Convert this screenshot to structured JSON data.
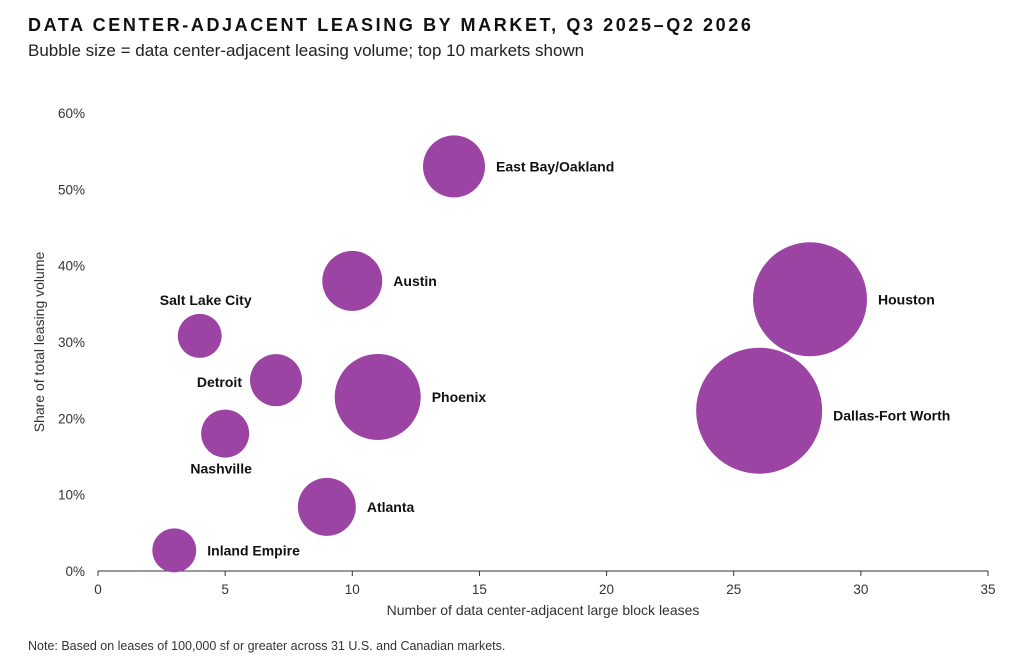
{
  "title": "DATA CENTER-ADJACENT LEASING BY MARKET, Q3 2025–Q2 2026",
  "subtitle": "Bubble size = data center-adjacent leasing volume; top 10 markets shown",
  "note": "Note: Based on leases of 100,000 sf or greater across 31 U.S. and Canadian markets.",
  "chart_data": {
    "type": "scatter",
    "bubble": true,
    "xlabel": "Number of data center-adjacent large block leases",
    "ylabel": "Share of total leasing volume",
    "xlim": [
      0,
      35
    ],
    "ylim": [
      0,
      60
    ],
    "xticks": [
      "0",
      "5",
      "10",
      "15",
      "20",
      "25",
      "30",
      "35"
    ],
    "yticks": [
      "0%",
      "10%",
      "20%",
      "30%",
      "40%",
      "50%",
      "60%"
    ],
    "grid": false,
    "color": "#9c44a3",
    "points": [
      {
        "label": "East Bay/Oakland",
        "x": 14,
        "y": 53,
        "size": 31
      },
      {
        "label": "Austin",
        "x": 10,
        "y": 38,
        "size": 30
      },
      {
        "label": "Houston",
        "x": 28,
        "y": 35.6,
        "size": 57
      },
      {
        "label": "Salt Lake City",
        "x": 4,
        "y": 30.8,
        "size": 22
      },
      {
        "label": "Detroit",
        "x": 7,
        "y": 25,
        "size": 26
      },
      {
        "label": "Phoenix",
        "x": 11,
        "y": 22.8,
        "size": 43
      },
      {
        "label": "Dallas-Fort Worth",
        "x": 26,
        "y": 21,
        "size": 63
      },
      {
        "label": "Nashville",
        "x": 5,
        "y": 18,
        "size": 24
      },
      {
        "label": "Atlanta",
        "x": 9,
        "y": 8.4,
        "size": 29
      },
      {
        "label": "Inland Empire",
        "x": 3,
        "y": 2.7,
        "size": 22
      }
    ]
  }
}
